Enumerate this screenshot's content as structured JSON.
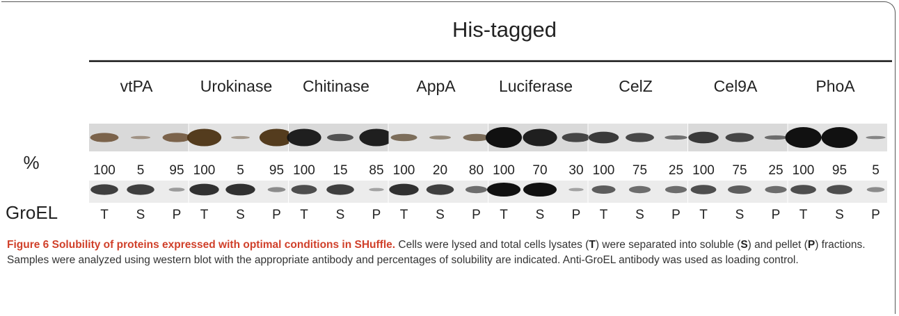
{
  "figure": {
    "header": "His-tagged",
    "row_labels": {
      "percent": "%",
      "loading": "GroEL"
    },
    "lanes": [
      "T",
      "S",
      "P"
    ],
    "groups": [
      {
        "name": "vtPA",
        "percent": [
          100,
          5,
          95
        ]
      },
      {
        "name": "Urokinase",
        "percent": [
          100,
          5,
          95
        ]
      },
      {
        "name": "Chitinase",
        "percent": [
          100,
          15,
          85
        ]
      },
      {
        "name": "AppA",
        "percent": [
          100,
          20,
          80
        ]
      },
      {
        "name": "Luciferase",
        "percent": [
          100,
          70,
          30
        ]
      },
      {
        "name": "CelZ",
        "percent": [
          100,
          75,
          25
        ]
      },
      {
        "name": "Cel9A",
        "percent": [
          100,
          75,
          25
        ]
      },
      {
        "name": "PhoA",
        "percent": [
          100,
          95,
          5
        ]
      }
    ]
  },
  "caption": {
    "label": "Figure 6",
    "title": "Solubility of proteins expressed with optimal conditions in SHuffle.",
    "body": [
      "Cells were lysed and total cells lysates (",
      "T",
      ") were separated into soluble (",
      "S",
      ") and pellet (",
      "P",
      ") fractions. Samples were analyzed using western blot with the appropriate antibody and percentages of solubility are indicated. Anti-GroEL antibody was used as loading control."
    ]
  }
}
